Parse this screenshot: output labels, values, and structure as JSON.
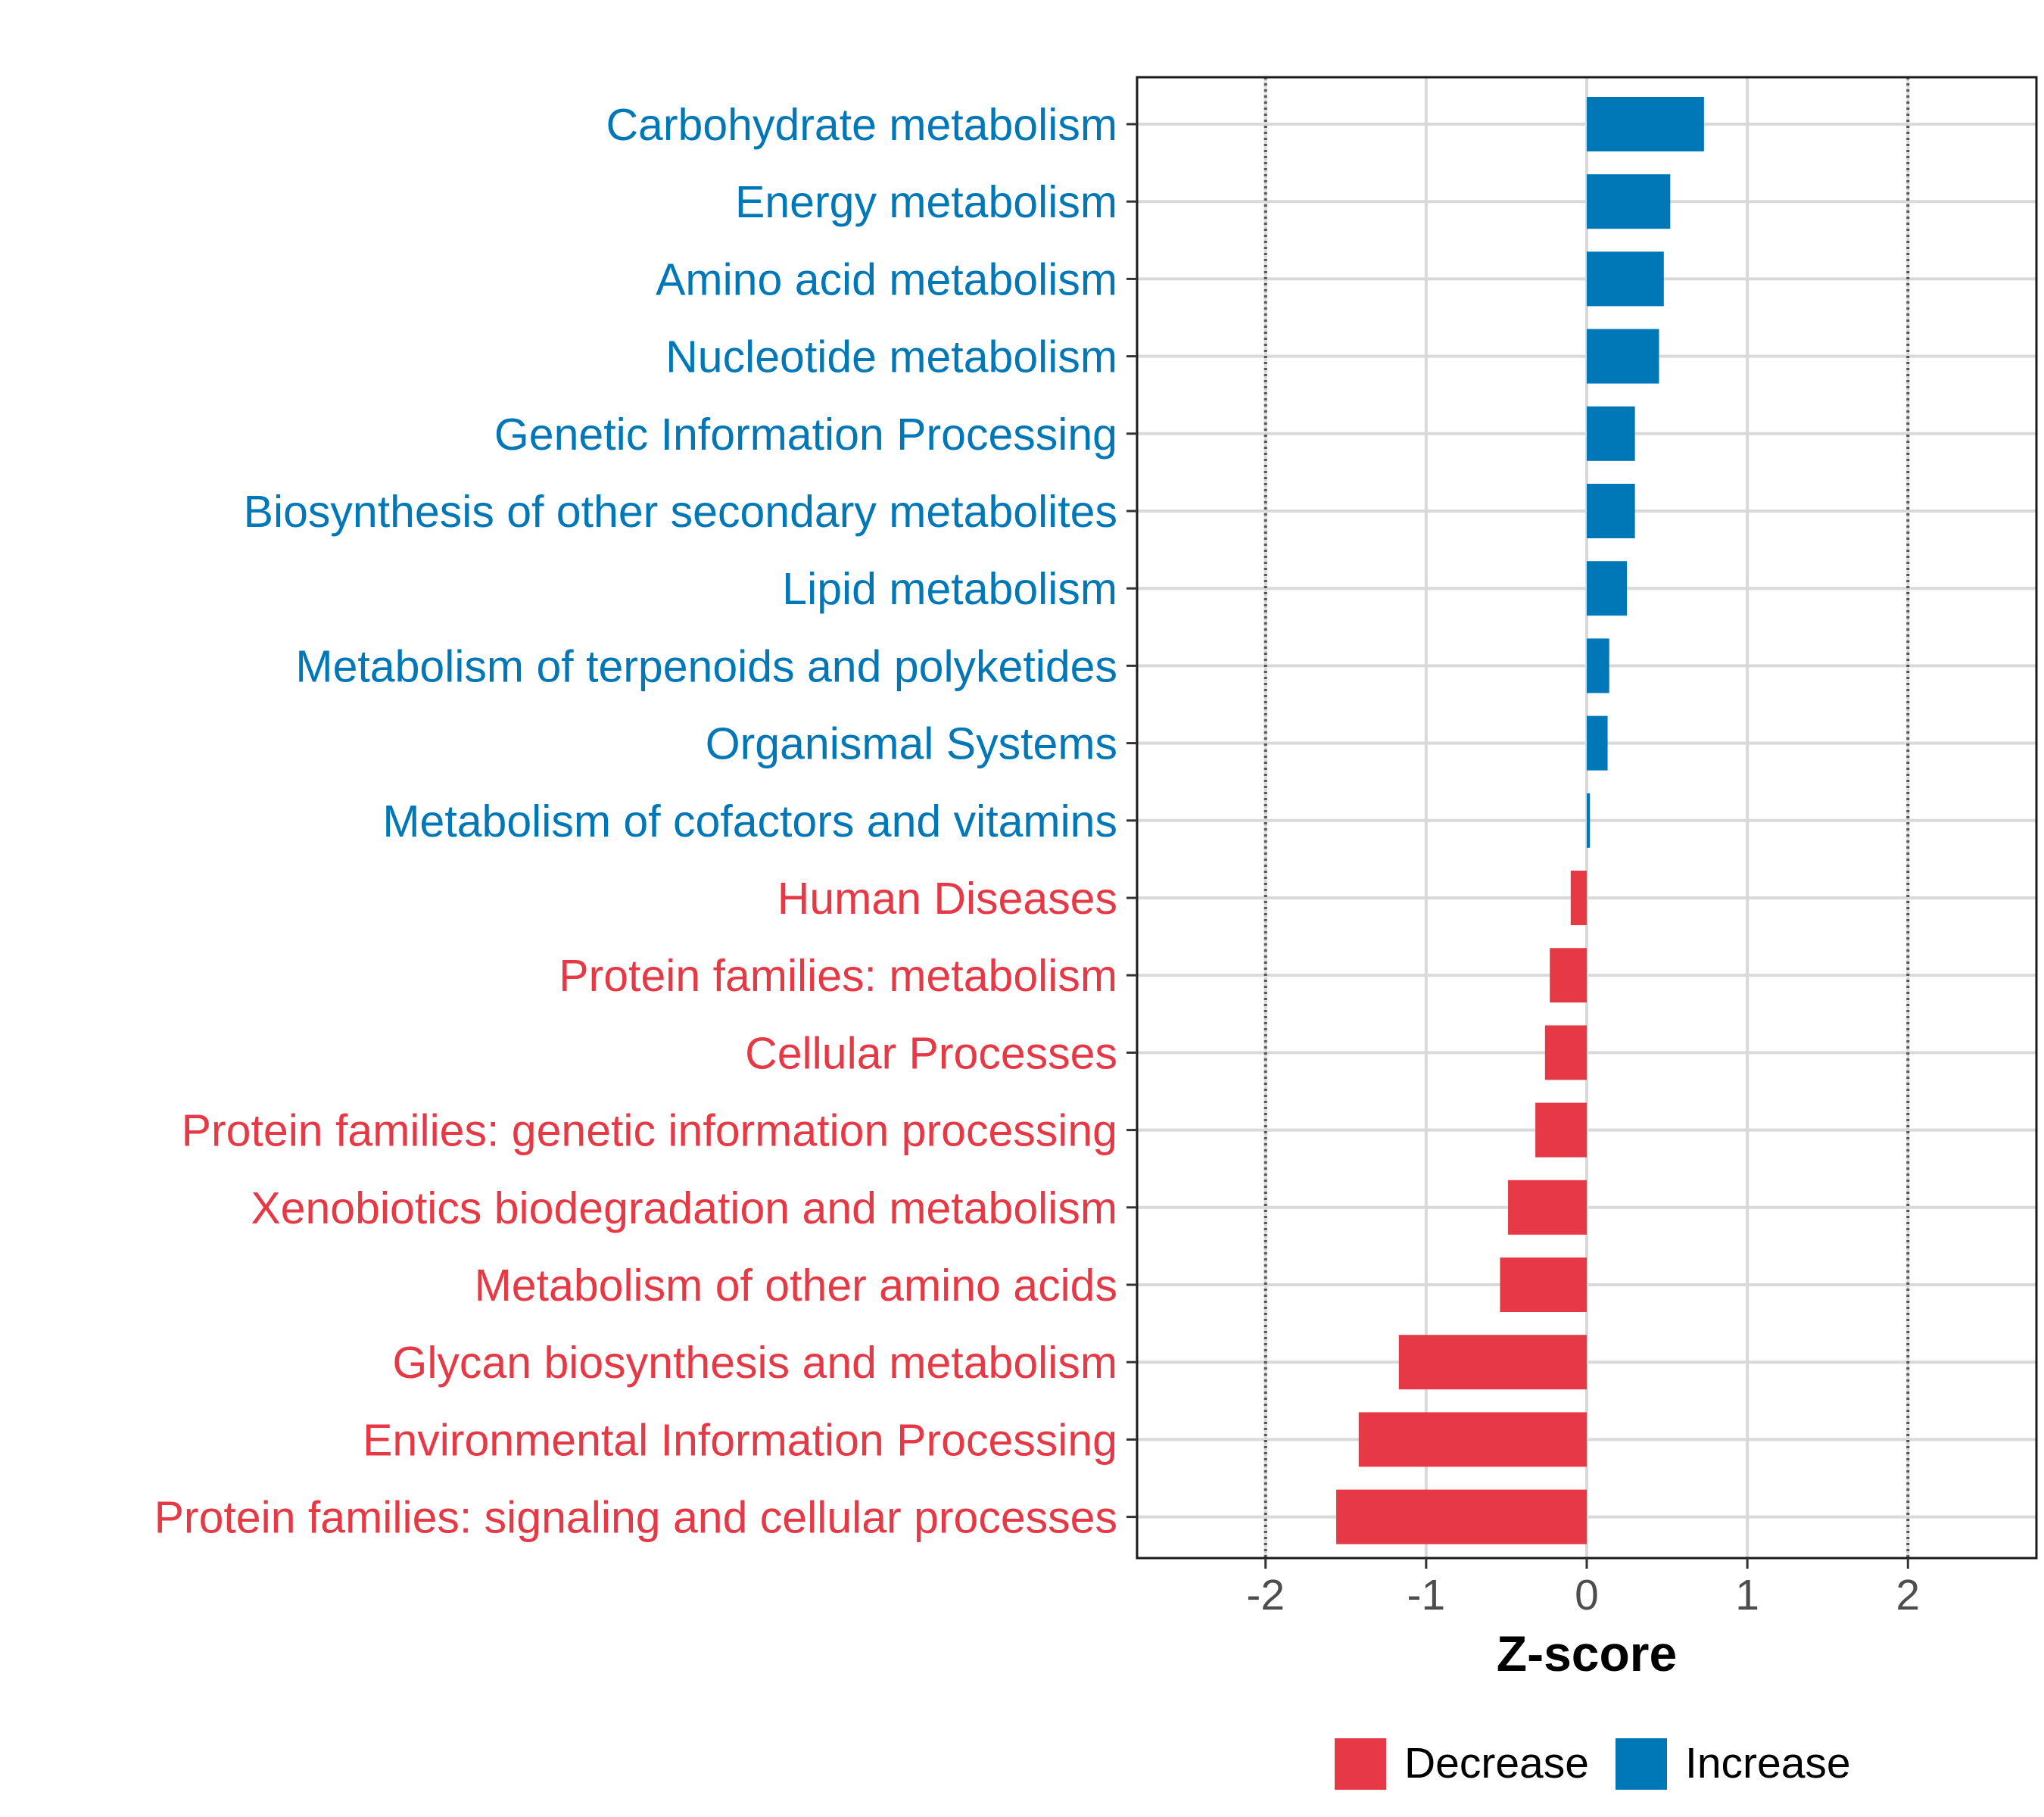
{
  "chart_data": {
    "type": "bar",
    "orientation": "horizontal",
    "xlabel": "Z-score",
    "ylabel": "",
    "xlim": [
      -2.8,
      2.8
    ],
    "x_ticks": [
      -2,
      -1,
      0,
      1,
      2
    ],
    "x_tick_labels": [
      "-2",
      "-1",
      "0",
      "1",
      "2"
    ],
    "reference_lines": [
      -2,
      2
    ],
    "grid": true,
    "categories": [
      "Carbohydrate metabolism",
      "Energy metabolism",
      "Amino acid metabolism",
      "Nucleotide metabolism",
      "Genetic Information Processing",
      "Biosynthesis of other secondary metabolites",
      "Lipid metabolism",
      "Metabolism of terpenoids and polyketides",
      "Organismal Systems",
      "Metabolism of cofactors and vitamins",
      "Human Diseases",
      "Protein families: metabolism",
      "Cellular Processes",
      "Protein families: genetic information processing",
      "Xenobiotics biodegradation and metabolism",
      "Metabolism of other amino acids",
      "Glycan biosynthesis and metabolism",
      "Environmental Information Processing",
      "Protein families: signaling and cellular processes"
    ],
    "values": [
      0.73,
      0.52,
      0.48,
      0.45,
      0.3,
      0.3,
      0.25,
      0.14,
      0.13,
      0.02,
      -0.1,
      -0.23,
      -0.26,
      -0.32,
      -0.49,
      -0.54,
      -1.17,
      -1.42,
      -1.56
    ],
    "legend": {
      "position": "bottom",
      "items": [
        {
          "label": "Decrease",
          "color": "#E63946"
        },
        {
          "label": "Increase",
          "color": "#0077B6"
        }
      ]
    },
    "colors": {
      "decrease": "#E63946",
      "increase": "#0077B6"
    }
  }
}
